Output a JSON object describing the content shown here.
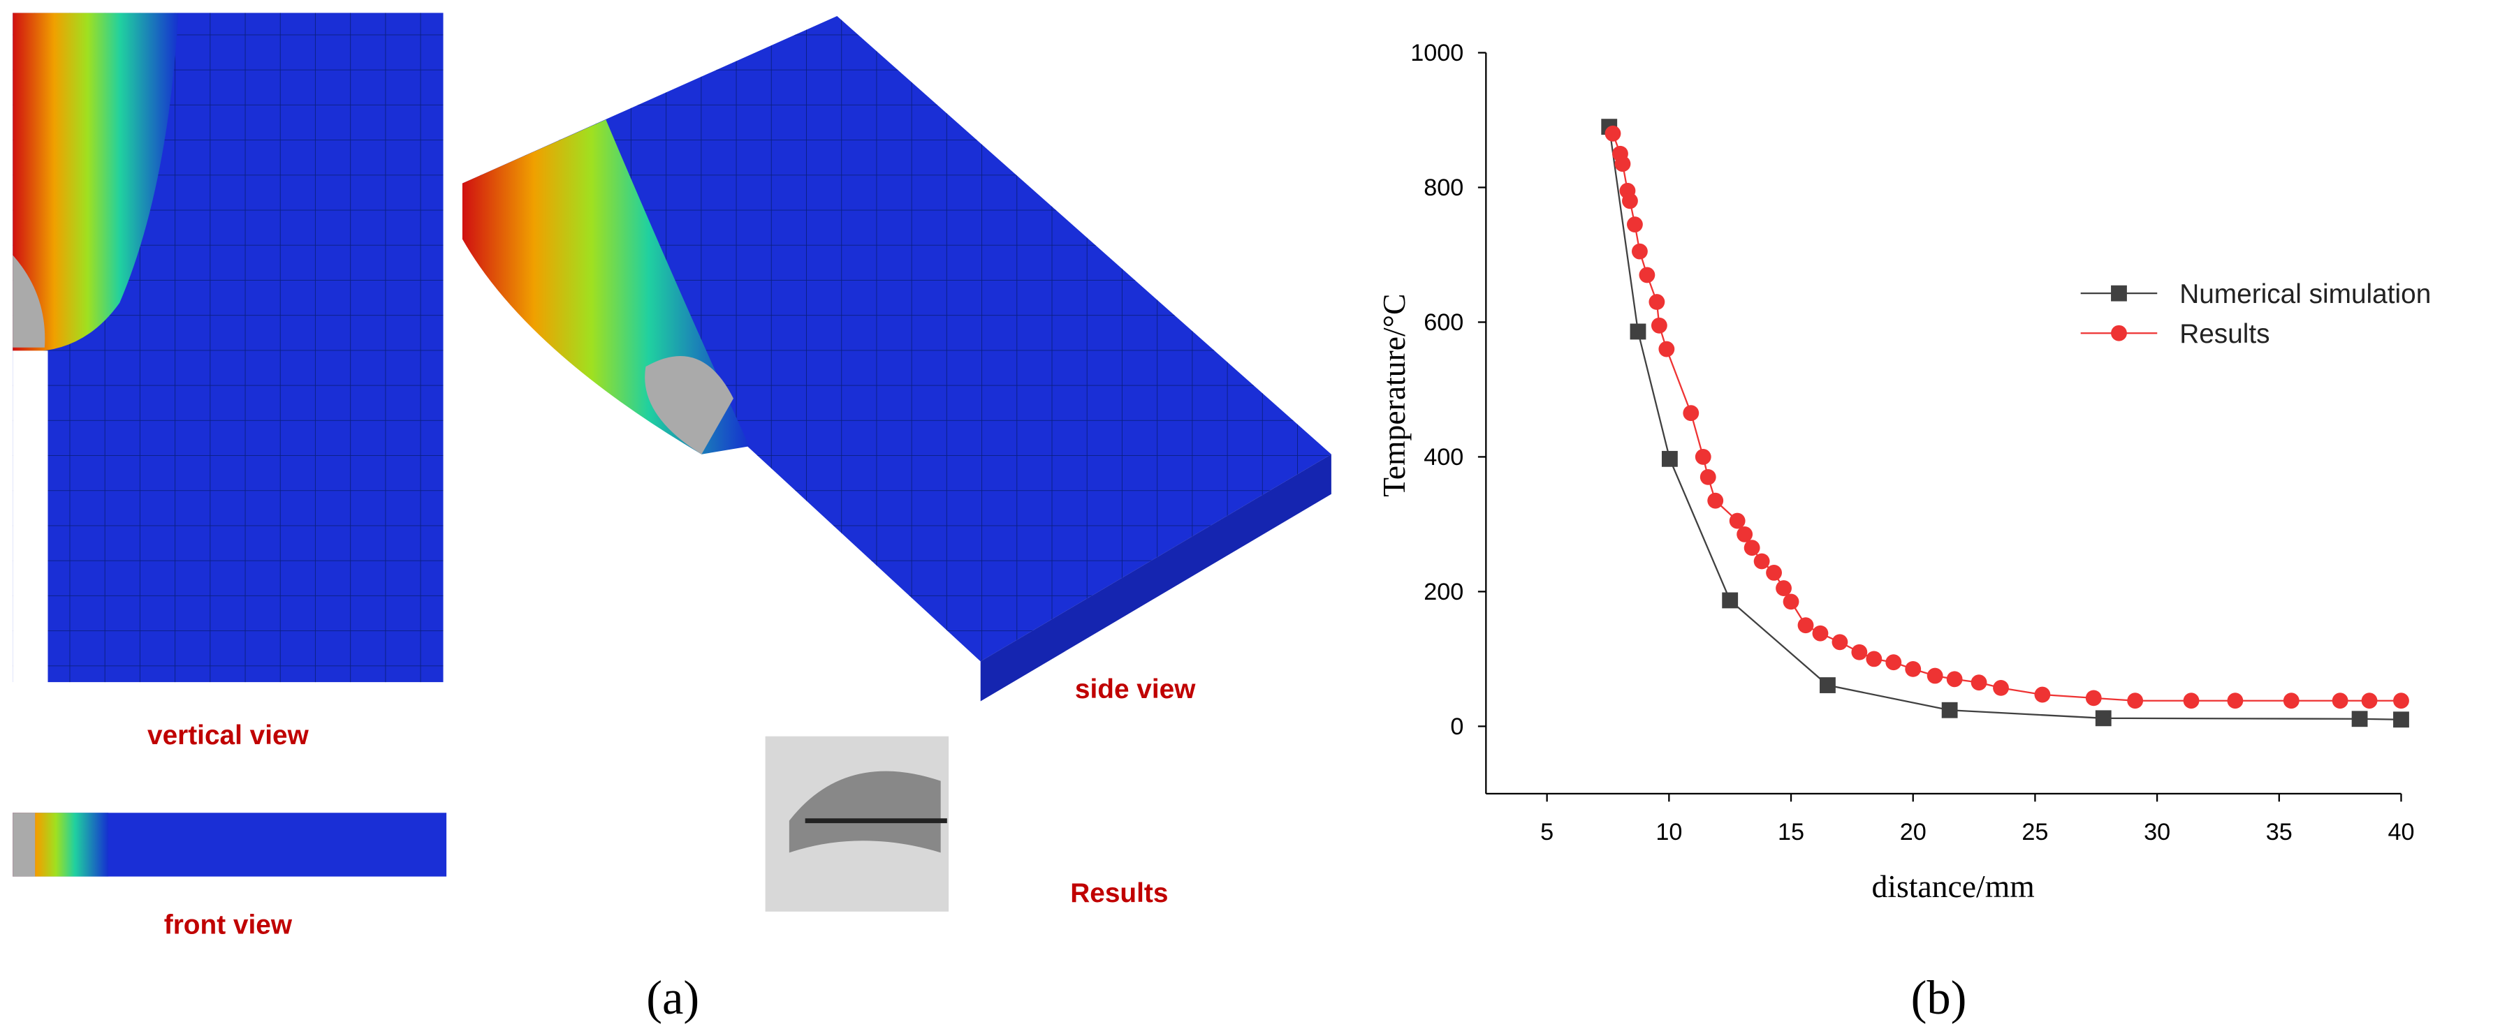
{
  "panel_a": {
    "labels": {
      "vertical": "vertical view",
      "front": "front view",
      "side": "side view",
      "results": "Results"
    },
    "caption": "(a)"
  },
  "chart_data": {
    "type": "line",
    "caption": "(b)",
    "x_label": "distance/mm",
    "y_label": "Temperature/°C",
    "xlim": [
      2.5,
      40
    ],
    "xticks": [
      5,
      10,
      15,
      20,
      25,
      30,
      35,
      40
    ],
    "ylim": [
      -100,
      1000
    ],
    "yticks": [
      0,
      200,
      400,
      600,
      800,
      1000
    ],
    "legend": "upper right",
    "series": [
      {
        "name": "Numerical simulation",
        "color": "#404040",
        "marker": "square",
        "x": [
          7.55,
          8.73,
          10.03,
          12.5,
          16.5,
          21.5,
          27.8,
          38.3,
          40
        ],
        "values": [
          890,
          586,
          397,
          187,
          61,
          24,
          12,
          11,
          10
        ]
      },
      {
        "name": "Results",
        "color": "#ee3333",
        "marker": "circle",
        "x": [
          7.7,
          8.0,
          8.1,
          8.3,
          8.4,
          8.6,
          8.8,
          9.1,
          9.5,
          9.6,
          9.9,
          10.9,
          11.4,
          11.6,
          11.9,
          12.8,
          13.1,
          13.4,
          13.8,
          14.3,
          14.7,
          15.0,
          15.6,
          16.2,
          17.0,
          17.8,
          18.4,
          19.2,
          20.0,
          20.9,
          21.7,
          22.7,
          23.6,
          25.3,
          27.4,
          29.1,
          31.4,
          33.2,
          35.5,
          37.5,
          38.7,
          40
        ],
        "values": [
          880,
          850,
          835,
          795,
          780,
          745,
          705,
          670,
          630,
          595,
          560,
          465,
          400,
          370,
          335,
          305,
          285,
          265,
          245,
          228,
          205,
          185,
          150,
          138,
          125,
          110,
          100,
          95,
          85,
          75,
          70,
          65,
          57,
          47,
          42,
          38,
          38,
          38,
          38,
          38,
          38,
          38
        ]
      }
    ]
  }
}
